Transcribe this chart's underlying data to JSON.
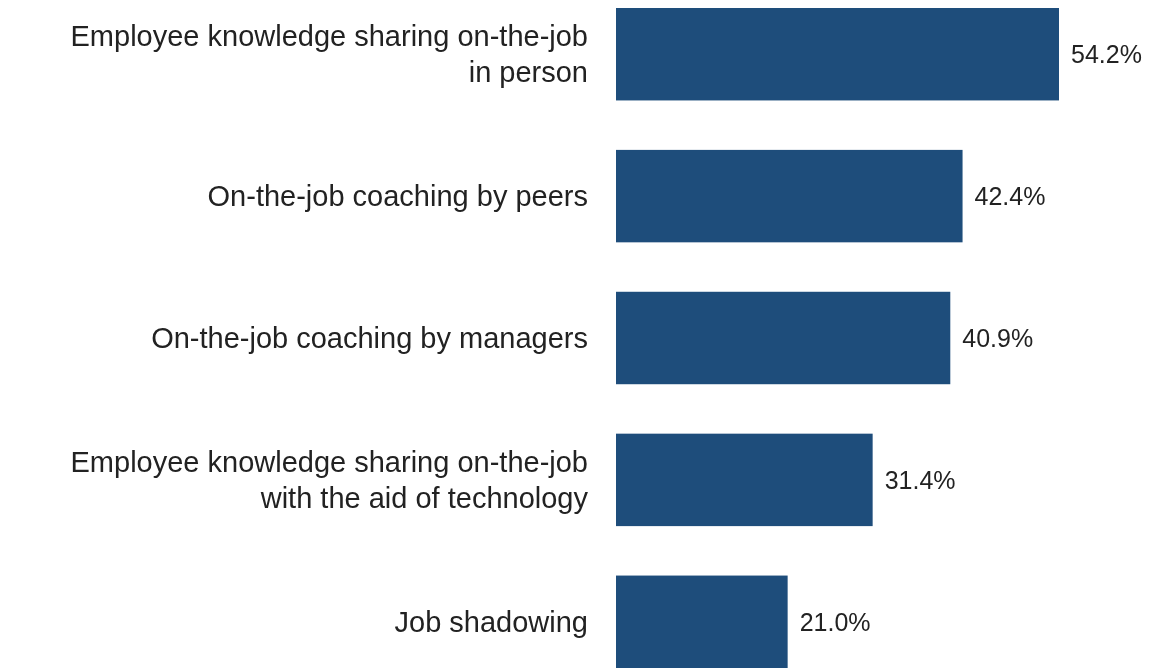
{
  "chart_data": {
    "type": "bar",
    "orientation": "horizontal",
    "categories": [
      "Employee knowledge sharing on-the-job in person",
      "On-the-job coaching by peers",
      "On-the-job coaching by managers",
      "Employee knowledge sharing on-the-job with the aid of technology",
      "Job shadowing"
    ],
    "values": [
      54.2,
      42.4,
      40.9,
      31.4,
      21.0
    ],
    "value_labels": [
      "54.2%",
      "42.4%",
      "40.9%",
      "31.4%",
      "21.0%"
    ],
    "color": "#1e4d7b"
  }
}
